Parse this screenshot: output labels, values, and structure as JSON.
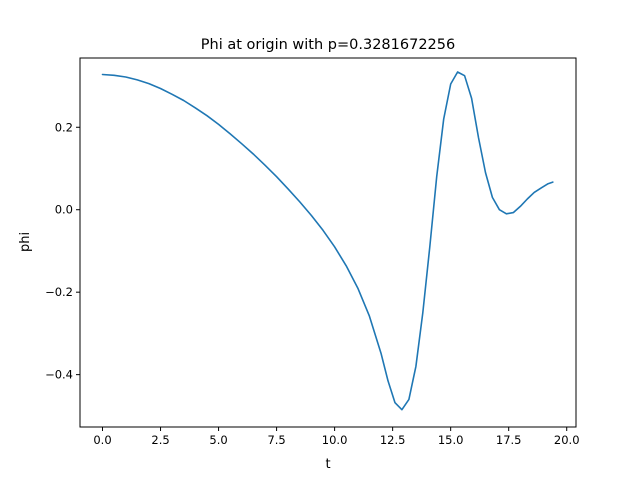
{
  "chart_data": {
    "type": "line",
    "title": "Phi at origin with p=0.3281672256",
    "xlabel": "t",
    "ylabel": "phi",
    "xlim": [
      -0.97,
      20.4
    ],
    "ylim": [
      -0.527,
      0.368
    ],
    "xticks": [
      0.0,
      2.5,
      5.0,
      7.5,
      10.0,
      12.5,
      15.0,
      17.5,
      20.0
    ],
    "xtick_labels": [
      "0.0",
      "2.5",
      "5.0",
      "7.5",
      "10.0",
      "12.5",
      "15.0",
      "17.5",
      "20.0"
    ],
    "yticks": [
      -0.4,
      -0.2,
      0.0,
      0.2
    ],
    "ytick_labels": [
      "−0.4",
      "−0.2",
      "0.0",
      "0.2"
    ],
    "grid": false,
    "legend": "none",
    "series": [
      {
        "color": "#1f77b4",
        "x": [
          0.0,
          0.5,
          1.0,
          1.5,
          2.0,
          2.5,
          3.0,
          3.5,
          4.0,
          4.5,
          5.0,
          5.5,
          6.0,
          6.5,
          7.0,
          7.5,
          8.0,
          8.5,
          9.0,
          9.5,
          10.0,
          10.5,
          11.0,
          11.5,
          12.0,
          12.3,
          12.6,
          12.9,
          13.2,
          13.5,
          13.8,
          14.1,
          14.4,
          14.7,
          15.0,
          15.3,
          15.6,
          15.9,
          16.2,
          16.5,
          16.8,
          17.1,
          17.4,
          17.7,
          18.0,
          18.3,
          18.6,
          18.9,
          19.2,
          19.4
        ],
        "y": [
          0.328,
          0.326,
          0.322,
          0.315,
          0.306,
          0.294,
          0.28,
          0.265,
          0.247,
          0.228,
          0.207,
          0.184,
          0.16,
          0.135,
          0.108,
          0.08,
          0.05,
          0.019,
          -0.014,
          -0.05,
          -0.09,
          -0.136,
          -0.19,
          -0.258,
          -0.348,
          -0.415,
          -0.468,
          -0.485,
          -0.46,
          -0.38,
          -0.25,
          -0.09,
          0.08,
          0.22,
          0.305,
          0.334,
          0.325,
          0.27,
          0.175,
          0.09,
          0.03,
          0.0,
          -0.01,
          -0.007,
          0.008,
          0.026,
          0.042,
          0.053,
          0.063,
          0.067
        ]
      }
    ]
  }
}
